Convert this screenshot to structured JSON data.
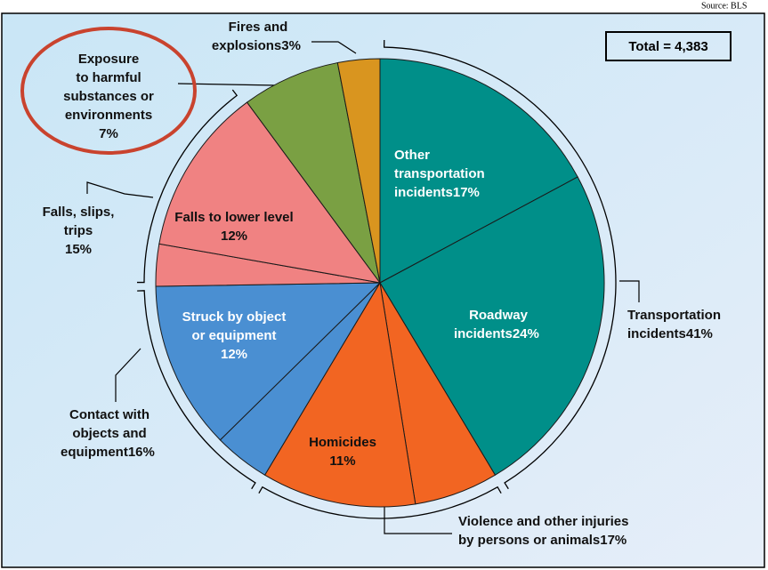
{
  "chart_data": {
    "type": "pie",
    "source": "Source: BLS",
    "annotation": "Total = 4,383",
    "categories": [
      "Other transportation incidents",
      "Roadway incidents",
      null,
      "Homicides",
      null,
      "Struck by object or equipment",
      null,
      "Falls to lower level",
      "Exposure to harmful substances or environments",
      "Fires and explosions"
    ],
    "values": [
      17,
      24,
      6,
      11,
      4,
      12,
      3,
      12,
      7,
      3
    ],
    "value_labels": [
      "17%",
      "24%",
      null,
      "11%",
      null,
      "12%",
      null,
      "12%",
      "7%",
      "3%"
    ],
    "colors": [
      "#008f89",
      "#008f89",
      "#f26522",
      "#f26522",
      "#4a8fd2",
      "#4a8fd2",
      "#f08282",
      "#f08282",
      "#7aa043",
      "#d9951f"
    ],
    "groups": {
      "names": [
        "Transportation incidents",
        "Violence and other injuries by persons or animals",
        "Contact with objects and equipment",
        "Falls, slips, trips"
      ],
      "values": [
        41,
        17,
        16,
        15
      ],
      "value_labels": [
        "41%",
        "17%",
        "16%",
        "15%"
      ]
    }
  }
}
